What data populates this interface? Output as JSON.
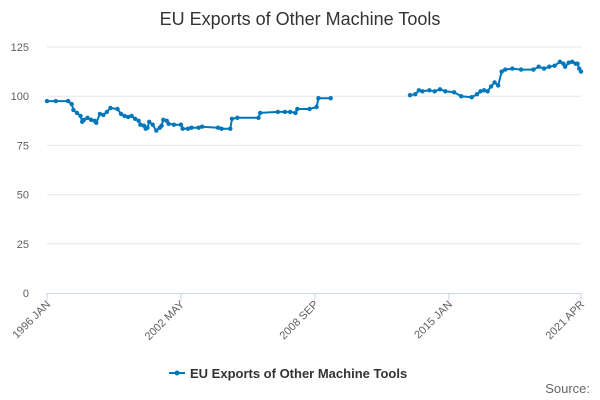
{
  "colors": {
    "series": "#0077bb",
    "grid": "#e6e6e6",
    "axis": "#ccd6eb",
    "text": "#333333",
    "tick_text": "#606060"
  },
  "legend": {
    "label": "EU Exports of Other Machine Tools"
  },
  "credit": "Source:",
  "chart_data": {
    "type": "line",
    "title": "EU Exports of Other Machine Tools",
    "xlabel": "",
    "ylabel": "",
    "ylim": [
      0,
      125
    ],
    "yticks": [
      0,
      25,
      50,
      75,
      100,
      125
    ],
    "xlim": [
      "1996-01",
      "2021-04"
    ],
    "xticks": [
      {
        "date": "1996-01",
        "label": "1996 JAN"
      },
      {
        "date": "2002-05",
        "label": "2002 MAY"
      },
      {
        "date": "2008-09",
        "label": "2008 SEP"
      },
      {
        "date": "2015-01",
        "label": "2015 JAN"
      },
      {
        "date": "2021-04",
        "label": "2021 APR"
      }
    ],
    "grid": true,
    "legend_position": "bottom",
    "series": [
      {
        "name": "EU Exports of Other Machine Tools",
        "segments": [
          [
            [
              "1996-01",
              97.5
            ],
            [
              "1996-06",
              97.5
            ],
            [
              "1997-01",
              97.5
            ],
            [
              "1997-03",
              96
            ],
            [
              "1997-04",
              93
            ],
            [
              "1997-06",
              91.5
            ],
            [
              "1997-08",
              90
            ],
            [
              "1997-09",
              87
            ],
            [
              "1997-10",
              88
            ],
            [
              "1997-12",
              89
            ],
            [
              "1998-02",
              88
            ],
            [
              "1998-04",
              87.5
            ],
            [
              "1998-05",
              86.5
            ],
            [
              "1998-07",
              91
            ],
            [
              "1998-09",
              90.5
            ],
            [
              "1998-11",
              92
            ],
            [
              "1999-01",
              94
            ],
            [
              "1999-05",
              93.5
            ],
            [
              "1999-07",
              91
            ],
            [
              "1999-09",
              90
            ],
            [
              "1999-11",
              89.5
            ],
            [
              "2000-01",
              90
            ],
            [
              "2000-03",
              88.5
            ],
            [
              "2000-05",
              87.5
            ],
            [
              "2000-06",
              85.5
            ],
            [
              "2000-08",
              85
            ],
            [
              "2000-09",
              83.5
            ],
            [
              "2000-10",
              84
            ],
            [
              "2000-11",
              87
            ],
            [
              "2001-01",
              85.5
            ],
            [
              "2001-03",
              82.5
            ],
            [
              "2001-05",
              84
            ],
            [
              "2001-06",
              85
            ],
            [
              "2001-07",
              88
            ],
            [
              "2001-09",
              87.5
            ],
            [
              "2001-10",
              86
            ],
            [
              "2002-01",
              85.5
            ],
            [
              "2002-05",
              85.5
            ],
            [
              "2002-06",
              83.5
            ],
            [
              "2002-09",
              83.5
            ],
            [
              "2002-11",
              84
            ],
            [
              "2003-03",
              84
            ],
            [
              "2003-05",
              84.5
            ],
            [
              "2004-02",
              84
            ],
            [
              "2004-04",
              83.5
            ],
            [
              "2004-09",
              83.5
            ],
            [
              "2004-10",
              88.5
            ],
            [
              "2005-01",
              89
            ],
            [
              "2006-01",
              89
            ],
            [
              "2006-02",
              91.5
            ],
            [
              "2006-12",
              92
            ],
            [
              "2007-04",
              92
            ],
            [
              "2007-07",
              92
            ],
            [
              "2007-10",
              91.5
            ],
            [
              "2007-11",
              93.5
            ],
            [
              "2008-06",
              93.5
            ],
            [
              "2008-10",
              94.5
            ],
            [
              "2008-11",
              99
            ],
            [
              "2009-06",
              99
            ]
          ],
          [
            [
              "2013-03",
              100.5
            ],
            [
              "2013-06",
              101
            ],
            [
              "2013-08",
              103
            ],
            [
              "2013-10",
              102.5
            ],
            [
              "2014-02",
              103
            ],
            [
              "2014-05",
              102.5
            ],
            [
              "2014-08",
              103.5
            ],
            [
              "2014-11",
              102.5
            ],
            [
              "2015-04",
              102
            ],
            [
              "2015-08",
              100
            ],
            [
              "2016-02",
              99.5
            ],
            [
              "2016-05",
              101
            ],
            [
              "2016-07",
              102.5
            ],
            [
              "2016-09",
              103
            ],
            [
              "2016-11",
              102.5
            ],
            [
              "2017-01",
              105
            ],
            [
              "2017-03",
              107
            ],
            [
              "2017-05",
              105.5
            ],
            [
              "2017-07",
              112.5
            ],
            [
              "2017-09",
              113.5
            ],
            [
              "2018-01",
              114
            ],
            [
              "2018-06",
              113.5
            ],
            [
              "2019-01",
              113.5
            ],
            [
              "2019-04",
              115
            ],
            [
              "2019-07",
              114
            ],
            [
              "2019-10",
              115
            ],
            [
              "2020-01",
              115.5
            ],
            [
              "2020-04",
              117.5
            ],
            [
              "2020-06",
              116.5
            ],
            [
              "2020-07",
              115
            ],
            [
              "2020-09",
              117
            ],
            [
              "2020-11",
              117.5
            ],
            [
              "2021-01",
              116.5
            ],
            [
              "2021-02",
              116.5
            ],
            [
              "2021-03",
              114
            ],
            [
              "2021-04",
              112.5
            ]
          ]
        ]
      }
    ]
  }
}
